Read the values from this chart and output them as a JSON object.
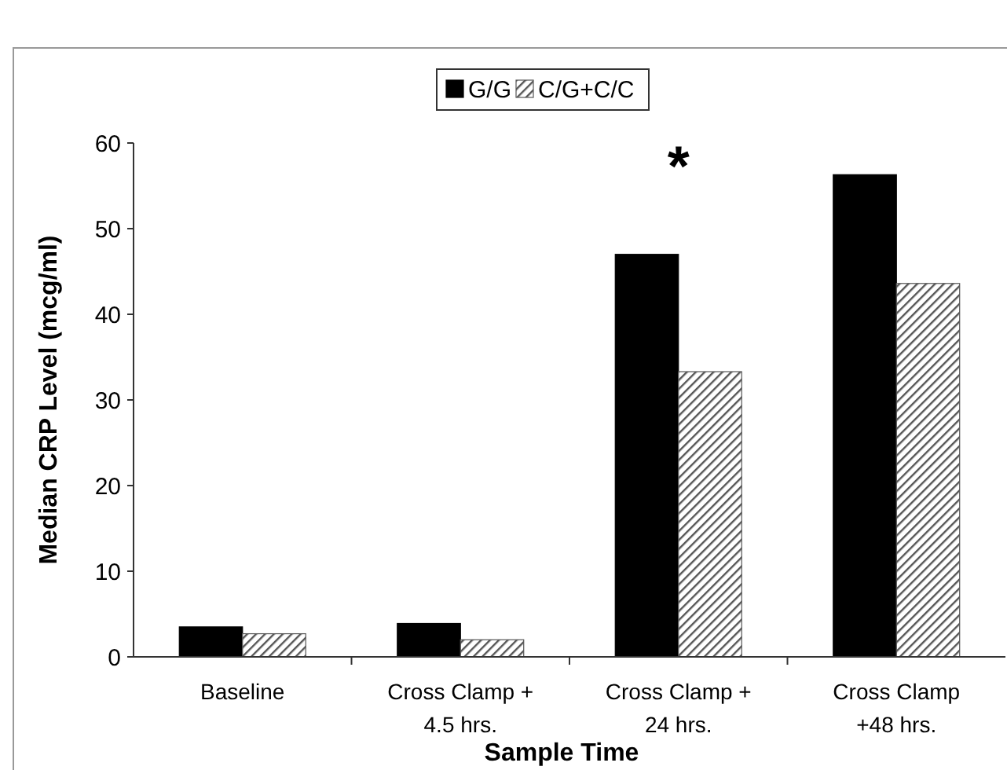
{
  "chart_data": {
    "type": "bar",
    "xlabel": "Sample Time",
    "ylabel": "Median CRP Level (mcg/ml)",
    "categories": [
      "Baseline",
      "Cross Clamp +\n4.5 hrs.",
      "Cross Clamp +\n24 hrs.",
      "Cross Clamp\n+48 hrs."
    ],
    "series": [
      {
        "name": "G/G",
        "color": "#000000",
        "values": [
          3.5,
          3.9,
          47,
          56.3
        ]
      },
      {
        "name": "C/G+C/C",
        "color": "#555555",
        "values": [
          2.7,
          2.0,
          33.3,
          43.6
        ]
      }
    ],
    "ylim": [
      0,
      60
    ],
    "yticks": [
      0,
      10,
      20,
      30,
      40,
      50,
      60
    ],
    "grid": false,
    "legend": "top",
    "annotations": [
      "*"
    ]
  }
}
